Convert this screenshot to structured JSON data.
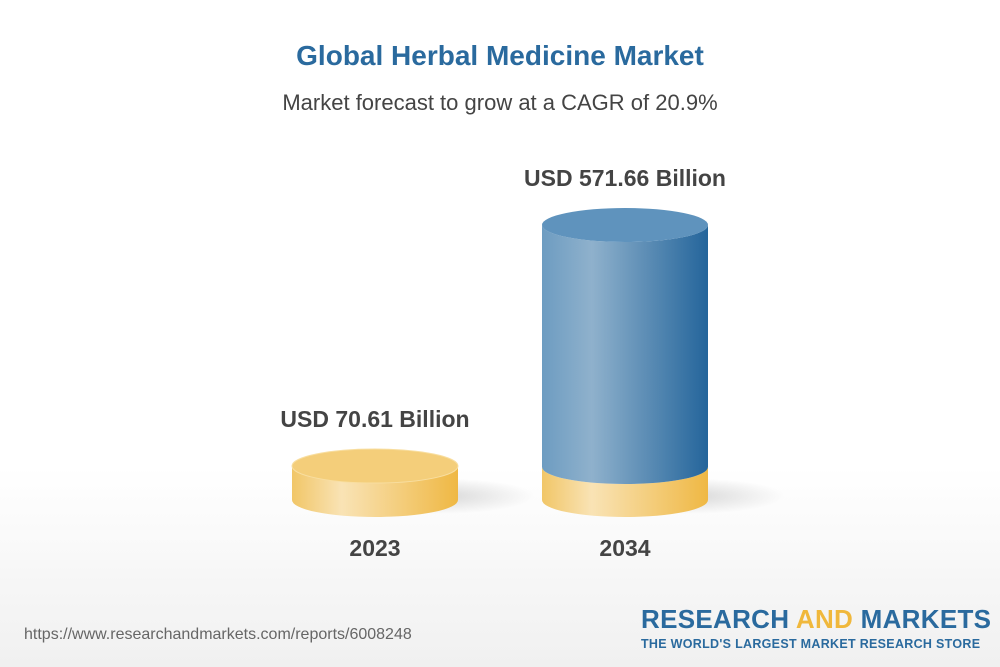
{
  "title": "Global Herbal Medicine Market",
  "subtitle": "Market forecast to grow at a CAGR of 20.9%",
  "chart_data": {
    "type": "bar",
    "style": "3d-cylinder",
    "categories": [
      "2023",
      "2034"
    ],
    "values": [
      70.61,
      571.66
    ],
    "data_labels": [
      "USD 70.61 Billion",
      "USD 571.66 Billion"
    ],
    "unit": "USD Billion",
    "colors": {
      "base": "#f3c76a",
      "forecast": "#2a6a9e"
    }
  },
  "footer": {
    "url": "https://www.researchandmarkets.com/reports/6008248",
    "logo_part1": "RESEARCH ",
    "logo_part2": "AND",
    "logo_part3": " MARKETS",
    "tagline": "THE WORLD'S LARGEST MARKET RESEARCH STORE"
  }
}
